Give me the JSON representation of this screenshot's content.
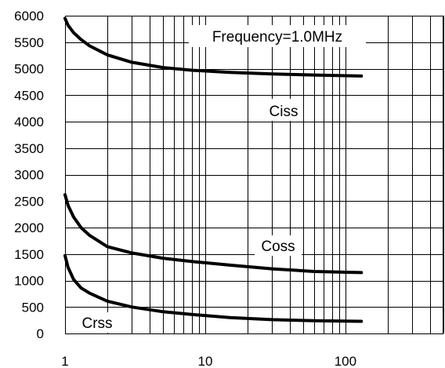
{
  "chart_data": {
    "type": "line",
    "title": "",
    "xlabel": "",
    "ylabel": "",
    "xscale": "log",
    "xlim": [
      1,
      500
    ],
    "ylim": [
      0,
      6000
    ],
    "xticks": [
      1,
      10,
      100
    ],
    "yticks": [
      0,
      500,
      1000,
      1500,
      2000,
      2500,
      3000,
      3500,
      4000,
      4500,
      5000,
      5500,
      6000
    ],
    "grid": true,
    "annotation": "Frequency=1.0MHz",
    "series": [
      {
        "name": "Ciss",
        "color": "#000000",
        "x": [
          1,
          1.05,
          1.15,
          1.3,
          1.5,
          2,
          3,
          5,
          8,
          15,
          30,
          60,
          130
        ],
        "y": [
          5950,
          5820,
          5680,
          5550,
          5430,
          5260,
          5120,
          5020,
          4970,
          4930,
          4900,
          4880,
          4860
        ]
      },
      {
        "name": "Coss",
        "color": "#000000",
        "x": [
          1,
          1.05,
          1.15,
          1.3,
          1.5,
          2,
          3,
          5,
          8,
          15,
          30,
          60,
          130
        ],
        "y": [
          2620,
          2420,
          2200,
          2000,
          1850,
          1640,
          1520,
          1420,
          1360,
          1290,
          1220,
          1170,
          1150
        ]
      },
      {
        "name": "Crss",
        "color": "#000000",
        "x": [
          1,
          1.05,
          1.15,
          1.3,
          1.5,
          2,
          3,
          5,
          8,
          15,
          30,
          60,
          130
        ],
        "y": [
          1470,
          1250,
          1020,
          860,
          760,
          610,
          500,
          410,
          360,
          300,
          260,
          240,
          230
        ]
      }
    ]
  }
}
